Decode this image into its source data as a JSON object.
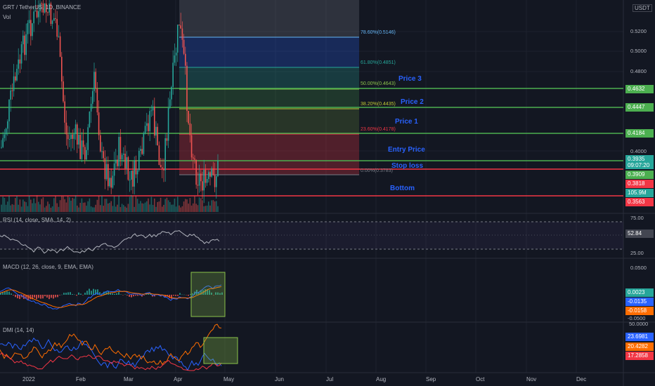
{
  "header": {
    "symbol": "GRT / TetherUS, 1D, BINANCE",
    "volume_label": "Vol",
    "currency": "USDT"
  },
  "fib_levels": [
    {
      "label": "78.60%(0.5146)",
      "color": "#64b5f6"
    },
    {
      "label": "61.80%(0.4851)",
      "color": "#26a69a"
    },
    {
      "label": "50.00%(0.4643)",
      "color": "#8bc34a"
    },
    {
      "label": "38.20%(0.4435)",
      "color": "#c0ca33"
    },
    {
      "label": "23.60%(0.4178)",
      "color": "#f23645"
    },
    {
      "label": "0.00%(0.3783)",
      "color": "#787b86"
    }
  ],
  "annotations": {
    "price3": "Price 3",
    "price2": "Price 2",
    "price1": "Price 1",
    "entry": "Entry Price",
    "stop": "Stop loss",
    "bottom": "Bottom"
  },
  "price_axis": [
    "0.5200",
    "0.5000",
    "0.4800",
    "0.4000"
  ],
  "price_tags": {
    "p3": {
      "value": "0.4632",
      "color": "#4caf50"
    },
    "p2": {
      "value": "0.4447",
      "color": "#4caf50"
    },
    "p1": {
      "value": "0.4184",
      "color": "#4caf50"
    },
    "last": {
      "value": "0.3935",
      "countdown": "09:07:20",
      "color": "#26a69a"
    },
    "entry": {
      "value": "0.3909",
      "color": "#4caf50"
    },
    "stop": {
      "value": "0.3818",
      "color": "#f23645"
    },
    "vol": {
      "value": "105.9M",
      "color": "#26a69a"
    },
    "bottom": {
      "value": "0.3563",
      "color": "#f23645"
    }
  },
  "rsi": {
    "label": "RSI (14, close, SMA, 14, 2)",
    "axis": [
      "75.00",
      "25.00"
    ],
    "value": "52.84"
  },
  "macd": {
    "label": "MACD (12, 26, close, 9, EMA, EMA)",
    "axis": [
      "0.0500",
      "-0.0500"
    ],
    "hist": "0.0023",
    "macd": "-0.0135",
    "signal": "-0.0158"
  },
  "dmi": {
    "label": "DMI (14, 14)",
    "axis": [
      "50.0000"
    ],
    "plus": "23.6981",
    "minus": "20.4282",
    "adx": "17.2858"
  },
  "time_axis": [
    "2022",
    "Feb",
    "Mar",
    "Apr",
    "May",
    "Jun",
    "Jul",
    "Aug",
    "Sep",
    "Oct",
    "Nov",
    "Dec"
  ],
  "colors": {
    "up": "#26a69a",
    "down": "#ef5350",
    "line_green": "#4caf50",
    "line_red": "#f23645",
    "annotation": "#2962ff",
    "rsi_line": "#b2b5be",
    "macd_line": "#2962ff",
    "signal_line": "#ff6d00",
    "dmi_plus": "#2962ff",
    "dmi_minus": "#ff6d00",
    "adx": "#f23645"
  }
}
